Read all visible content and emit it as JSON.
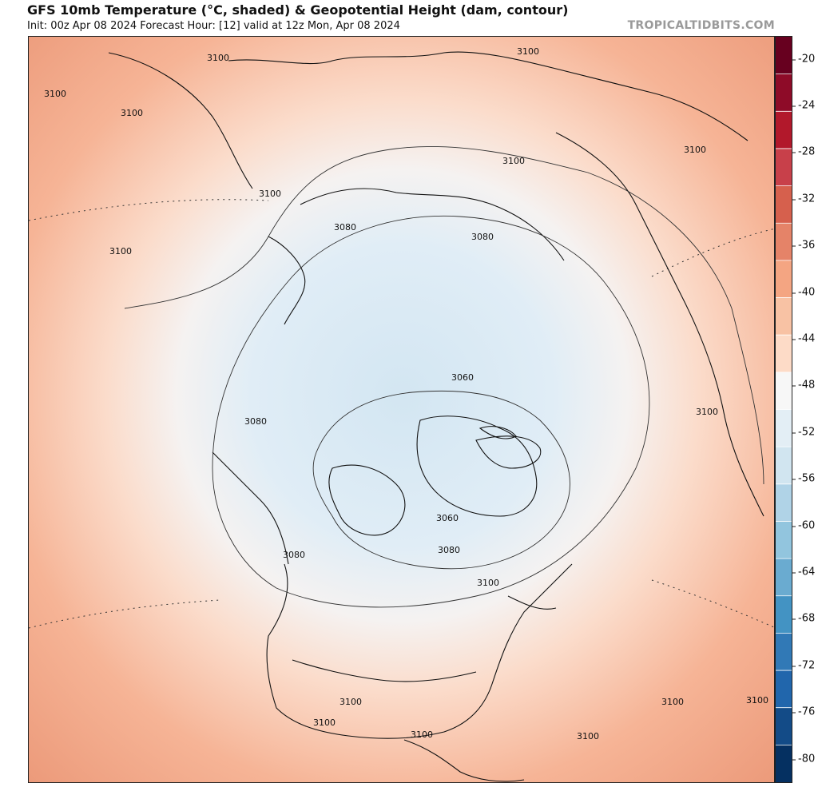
{
  "header": {
    "title": "GFS 10mb Temperature (°C, shaded) & Geopotential Height (dam, contour)",
    "subtitle": "Init: 00z Apr 08 2024   Forecast Hour: [12]   valid at 12z Mon, Apr 08 2024",
    "credit": "TROPICALTIDBITS.COM"
  },
  "colorbar": {
    "ticks": [
      "-20",
      "-24",
      "-28",
      "-32",
      "-36",
      "-40",
      "-44",
      "-48",
      "-52",
      "-56",
      "-60",
      "-64",
      "-68",
      "-72",
      "-76",
      "-80"
    ],
    "colors": [
      "#67001f",
      "#8e0b28",
      "#b2182b",
      "#c8404a",
      "#d6604d",
      "#e58368",
      "#f4a582",
      "#f8c2a4",
      "#fddbc7",
      "#f7f7f7",
      "#e3eef5",
      "#d1e5f0",
      "#b0d3e7",
      "#92c5de",
      "#6aabd0",
      "#4393c3",
      "#3179b6",
      "#2166ac",
      "#134b87",
      "#053061"
    ]
  },
  "map": {
    "colors": {
      "warm_edge": "#ec9a7a",
      "warm": "#f6b496",
      "mid": "#fbdccb",
      "neutral": "#f5f2f1",
      "cold": "#e0edf6",
      "coldest": "#d3e6f2"
    },
    "contour_labels": [
      {
        "text": "3100",
        "region": "top-left"
      },
      {
        "text": "3100",
        "region": "top-left-coast"
      },
      {
        "text": "3100",
        "region": "upper-left"
      },
      {
        "text": "3100",
        "region": "upper-middle-left"
      },
      {
        "text": "3100",
        "region": "left"
      },
      {
        "text": "3100",
        "region": "top-right"
      },
      {
        "text": "3100",
        "region": "upper-right"
      },
      {
        "text": "3100",
        "region": "upper-center"
      },
      {
        "text": "3100",
        "region": "right"
      },
      {
        "text": "3080",
        "region": "upper-center-ring"
      },
      {
        "text": "3080",
        "region": "upper-right-ring"
      },
      {
        "text": "3080",
        "region": "left-ring"
      },
      {
        "text": "3060",
        "region": "center"
      },
      {
        "text": "3060",
        "region": "lower-center"
      },
      {
        "text": "3080",
        "region": "lower-left-ring"
      },
      {
        "text": "3080",
        "region": "lower-center-ring"
      },
      {
        "text": "3100",
        "region": "lower-center-right"
      },
      {
        "text": "3100",
        "region": "bottom-center-left"
      },
      {
        "text": "3100",
        "region": "bottom-left"
      },
      {
        "text": "3100",
        "region": "bottom-center"
      },
      {
        "text": "3100",
        "region": "bottom-center-right"
      },
      {
        "text": "3100",
        "region": "bottom-right"
      },
      {
        "text": "3100",
        "region": "bottom-right-edge"
      }
    ]
  }
}
